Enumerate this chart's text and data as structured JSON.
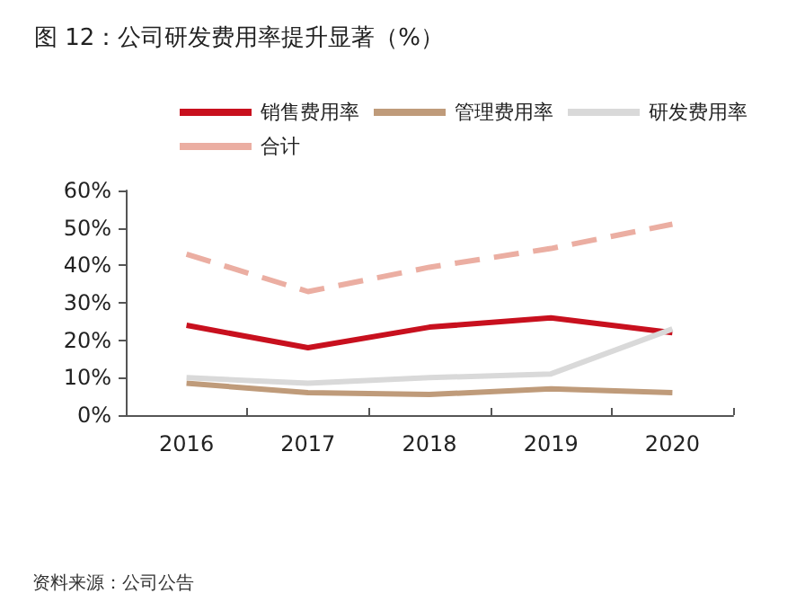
{
  "chart_data": {
    "type": "line",
    "title": "图 12：公司研发费用率提升显著（%）",
    "categories": [
      "2016",
      "2017",
      "2018",
      "2019",
      "2020"
    ],
    "series": [
      {
        "name": "销售费用率",
        "color": "#c8101e",
        "values": [
          24,
          18,
          23.5,
          26,
          22
        ]
      },
      {
        "name": "管理费用率",
        "color": "#bf9b7a",
        "values": [
          8.5,
          6,
          5.5,
          7,
          6
        ]
      },
      {
        "name": "研发费用率",
        "color": "#d9d9d9",
        "values": [
          10,
          8.5,
          10,
          11,
          23
        ]
      },
      {
        "name": "合计",
        "color": "#ebaea2",
        "line_style": "dashed",
        "values": [
          43,
          33,
          39.5,
          44.5,
          51
        ]
      }
    ],
    "ylim": [
      0,
      60
    ],
    "yticks": [
      {
        "value": 0,
        "label": "0%"
      },
      {
        "value": 10,
        "label": "10%"
      },
      {
        "value": 20,
        "label": "20%"
      },
      {
        "value": 30,
        "label": "30%"
      },
      {
        "value": 40,
        "label": "40%"
      },
      {
        "value": 50,
        "label": "50%"
      },
      {
        "value": 60,
        "label": "60%"
      }
    ],
    "grid": false,
    "legend": "top",
    "marker": "none",
    "line_style": "solid",
    "annotations": [
      "资料来源：公司公告"
    ]
  }
}
